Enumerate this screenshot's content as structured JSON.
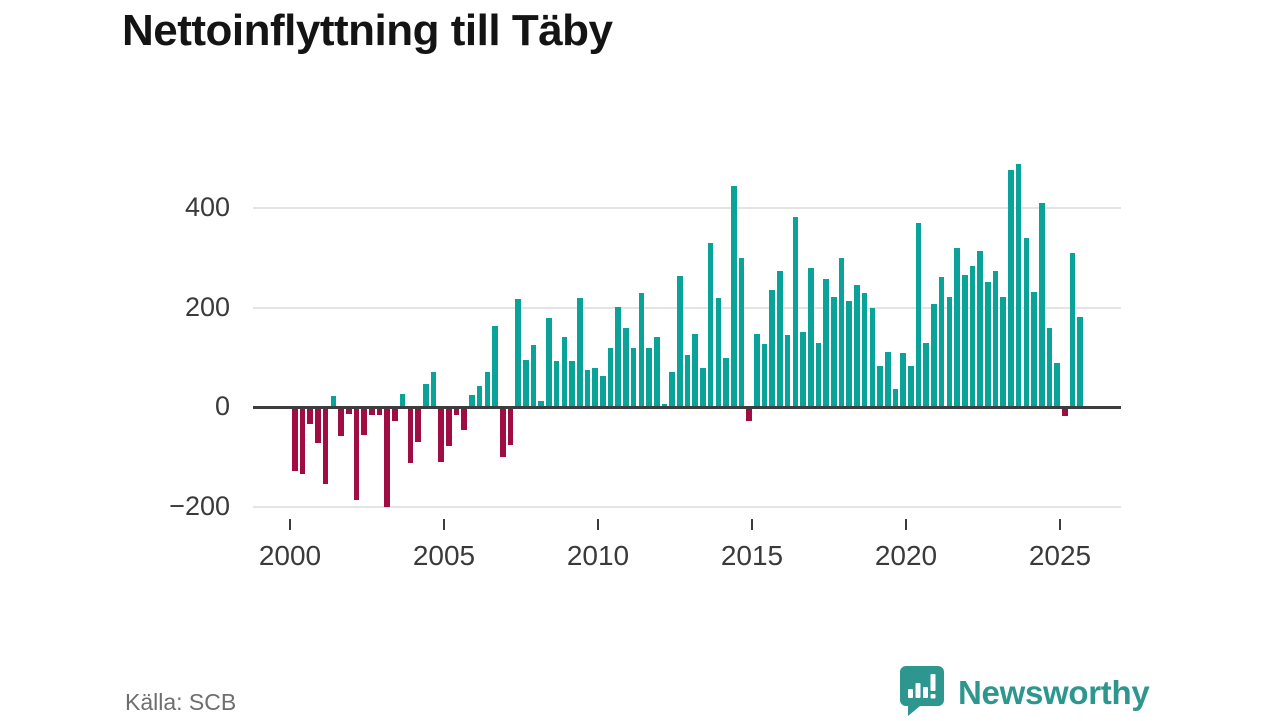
{
  "header": {
    "title": "Nettoinflyttning till Täby"
  },
  "chart_data": {
    "type": "bar",
    "title": "Nettoinflyttning till Täby",
    "x_start": "2000 Q1",
    "frequency": "quarterly",
    "values": [
      -124,
      -131,
      -30,
      -69,
      -151,
      21,
      -54,
      -10,
      -183,
      -53,
      -13,
      -12,
      -196,
      -25,
      25,
      -109,
      -66,
      45,
      68,
      -106,
      -75,
      -13,
      -43,
      23,
      41,
      68,
      161,
      -97,
      -73,
      215,
      93,
      123,
      10,
      177,
      91,
      138,
      91,
      217,
      73,
      76,
      61,
      116,
      200,
      156,
      117,
      228,
      117,
      139,
      5,
      69,
      261,
      102,
      145,
      76,
      327,
      218,
      96,
      443,
      298,
      -25,
      145,
      125,
      234,
      271,
      142,
      380,
      149,
      277,
      127,
      255,
      219,
      298,
      211,
      244,
      228,
      196,
      80,
      109,
      34,
      107,
      81,
      368,
      127,
      206,
      259,
      219,
      318,
      264,
      282,
      312,
      249,
      271,
      219,
      475,
      486,
      337,
      229,
      409,
      156,
      86,
      -15,
      307,
      178
    ],
    "positive_color": "#0aa39a",
    "negative_color": "#a00d43",
    "y_ticks": [
      400,
      200,
      0,
      -200
    ],
    "y_tick_labels": [
      "400",
      "200",
      "0",
      "−200"
    ],
    "x_tick_labels": [
      "2000",
      "2005",
      "2010",
      "2015",
      "2020",
      "2025"
    ],
    "ylim": [
      -230,
      510
    ],
    "grid": "horizontal",
    "legend": "none"
  },
  "footer": {
    "source": "Källa: SCB",
    "brand": "Newsworthy",
    "brand_color": "#2d968e",
    "logo_icon": "speech-bubble-bar-chart"
  }
}
